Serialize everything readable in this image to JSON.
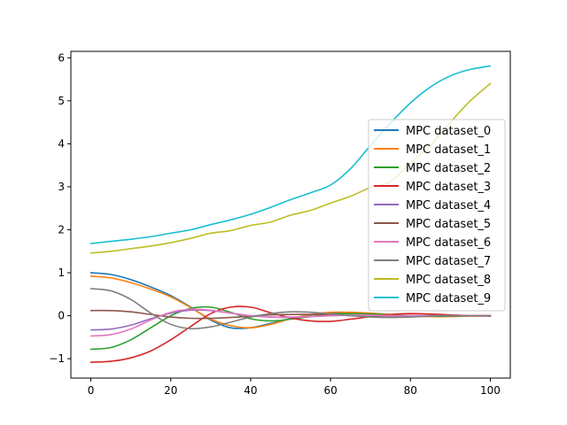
{
  "chart_data": {
    "type": "line",
    "title": "",
    "xlabel": "",
    "ylabel": "",
    "xlim": [
      -5,
      105
    ],
    "ylim": [
      -1.45,
      6.15
    ],
    "xticks": [
      0,
      20,
      40,
      60,
      80,
      100
    ],
    "yticks": [
      -1,
      0,
      1,
      2,
      3,
      4,
      5,
      6
    ],
    "xtick_labels": [
      "0",
      "20",
      "40",
      "60",
      "80",
      "100"
    ],
    "ytick_labels": [
      "−1",
      "0",
      "1",
      "2",
      "3",
      "4",
      "5",
      "6"
    ],
    "grid": false,
    "legend_position": "center-right",
    "x": [
      0,
      5,
      10,
      15,
      20,
      25,
      30,
      35,
      40,
      45,
      50,
      55,
      60,
      65,
      70,
      75,
      80,
      85,
      90,
      95,
      100
    ],
    "series": [
      {
        "name": "MPC dataset_0",
        "color": "#1f77b4",
        "values": [
          1.0,
          0.96,
          0.84,
          0.67,
          0.47,
          0.2,
          -0.1,
          -0.28,
          -0.28,
          -0.18,
          -0.07,
          0.02,
          0.06,
          0.07,
          0.05,
          0.02,
          0.0,
          -0.01,
          -0.01,
          0.0,
          0.0
        ]
      },
      {
        "name": "MPC dataset_1",
        "color": "#ff7f0e",
        "values": [
          0.92,
          0.88,
          0.77,
          0.62,
          0.44,
          0.19,
          -0.08,
          -0.23,
          -0.28,
          -0.2,
          -0.07,
          0.03,
          0.08,
          0.08,
          0.06,
          0.03,
          0.0,
          -0.02,
          -0.02,
          -0.01,
          0.0
        ]
      },
      {
        "name": "MPC dataset_2",
        "color": "#2ca02c",
        "values": [
          -0.78,
          -0.74,
          -0.56,
          -0.28,
          0.0,
          0.17,
          0.2,
          0.08,
          -0.07,
          -0.12,
          -0.08,
          -0.02,
          0.03,
          0.05,
          0.04,
          0.02,
          0.0,
          -0.01,
          -0.01,
          0.0,
          0.0
        ]
      },
      {
        "name": "MPC dataset_3",
        "color": "#d62728",
        "values": [
          -1.08,
          -1.06,
          -0.98,
          -0.82,
          -0.56,
          -0.25,
          0.05,
          0.2,
          0.2,
          0.07,
          -0.05,
          -0.12,
          -0.13,
          -0.08,
          -0.02,
          0.03,
          0.05,
          0.04,
          0.02,
          0.0,
          -0.01
        ]
      },
      {
        "name": "MPC dataset_4",
        "color": "#9467bd",
        "values": [
          -0.33,
          -0.31,
          -0.22,
          -0.07,
          0.06,
          0.13,
          0.12,
          0.06,
          0.0,
          -0.03,
          -0.04,
          -0.02,
          0.0,
          0.01,
          0.01,
          0.0,
          0.0,
          0.0,
          0.0,
          0.0,
          0.0
        ]
      },
      {
        "name": "MPC dataset_5",
        "color": "#8c564b",
        "values": [
          0.12,
          0.12,
          0.09,
          0.03,
          -0.03,
          -0.06,
          -0.06,
          -0.04,
          -0.01,
          0.02,
          0.03,
          0.03,
          0.02,
          0.0,
          -0.01,
          -0.01,
          -0.01,
          0.0,
          0.0,
          0.0,
          0.0
        ]
      },
      {
        "name": "MPC dataset_6",
        "color": "#e377c2",
        "values": [
          -0.47,
          -0.44,
          -0.31,
          -0.1,
          0.08,
          0.15,
          0.13,
          0.06,
          0.0,
          -0.03,
          -0.03,
          -0.02,
          0.0,
          0.01,
          0.01,
          0.0,
          0.0,
          0.0,
          0.0,
          0.0,
          0.0
        ]
      },
      {
        "name": "MPC dataset_7",
        "color": "#7f7f7f",
        "values": [
          0.63,
          0.58,
          0.38,
          0.06,
          -0.2,
          -0.3,
          -0.26,
          -0.15,
          -0.03,
          0.05,
          0.09,
          0.08,
          0.04,
          0.0,
          -0.03,
          -0.04,
          -0.03,
          -0.01,
          0.0,
          0.0,
          0.0
        ]
      },
      {
        "name": "MPC dataset_8",
        "color": "#bcbd22",
        "values": [
          1.46,
          1.5,
          1.56,
          1.62,
          1.7,
          1.8,
          1.92,
          1.98,
          2.1,
          2.18,
          2.34,
          2.45,
          2.62,
          2.78,
          2.98,
          3.12,
          3.55,
          3.96,
          4.5,
          5.0,
          5.4
        ]
      },
      {
        "name": "MPC dataset_9",
        "color": "#17becf",
        "values": [
          1.68,
          1.73,
          1.78,
          1.84,
          1.92,
          2.0,
          2.12,
          2.23,
          2.36,
          2.52,
          2.7,
          2.86,
          3.04,
          3.42,
          3.96,
          4.48,
          4.95,
          5.32,
          5.58,
          5.73,
          5.81
        ]
      }
    ]
  }
}
